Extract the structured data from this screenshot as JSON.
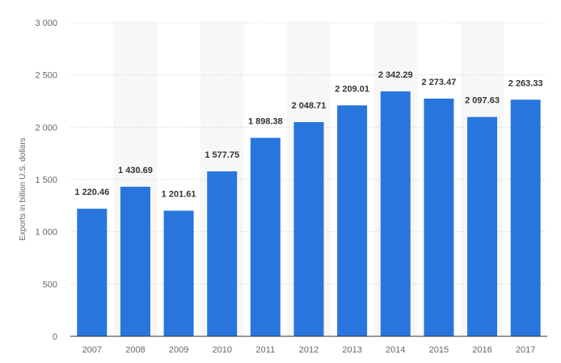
{
  "chart_data": {
    "type": "bar",
    "categories": [
      "2007",
      "2008",
      "2009",
      "2010",
      "2011",
      "2012",
      "2013",
      "2014",
      "2015",
      "2016",
      "2017"
    ],
    "values": [
      1220.46,
      1430.69,
      1201.61,
      1577.75,
      1898.38,
      2048.71,
      2209.01,
      2342.29,
      2273.47,
      2097.63,
      2263.33
    ],
    "value_labels": [
      "1 220.46",
      "1 430.69",
      "1 201.61",
      "1 577.75",
      "1 898.38",
      "2 048.71",
      "2 209.01",
      "2 342.29",
      "2 273.47",
      "2 097.63",
      "2 263.33"
    ],
    "y_ticks": [
      0,
      500,
      1000,
      1500,
      2000,
      2500,
      3000
    ],
    "y_tick_labels": [
      "0",
      "500",
      "1 000",
      "1 500",
      "2 000",
      "2 500",
      "3 000"
    ],
    "ylim": [
      0,
      3000
    ],
    "ylabel": "Exports in billion U.S. dollars",
    "xlabel": "",
    "title": "",
    "grid": true,
    "legend": "none",
    "bar_color": "#2876dd",
    "band_color": "#f7f7f7",
    "grid_color": "#cccccc"
  }
}
